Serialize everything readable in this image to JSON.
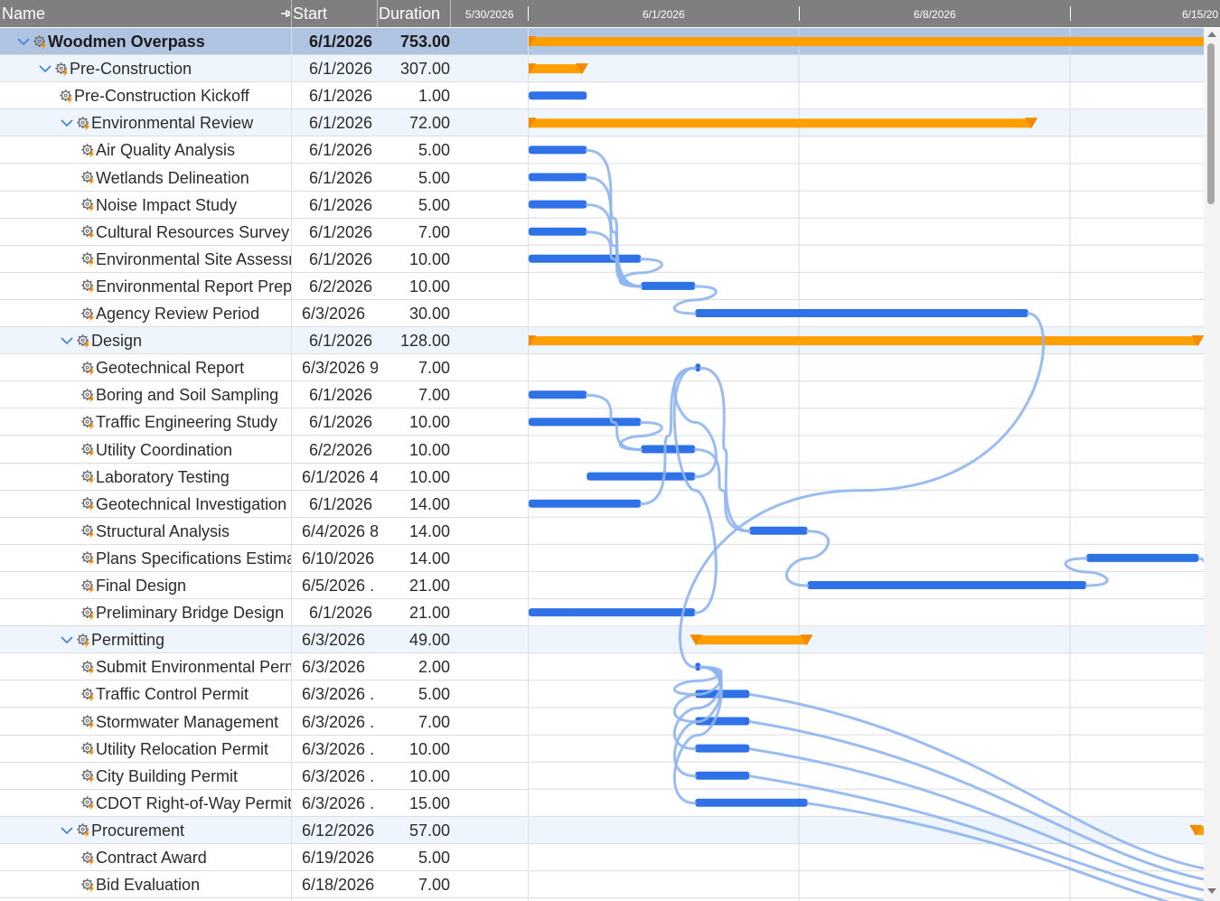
{
  "header": {
    "name_label": "Name",
    "start_label": "Start",
    "duration_label": "Duration",
    "timeline_dates": [
      "5/30/2026",
      "6/1/2026",
      "6/8/2026",
      "6/15/20"
    ]
  },
  "colors": {
    "header_bg": "#7f7f7f",
    "summary_bar": "#ffa000",
    "task_bar": "#2f72e8",
    "link_line": "#8fb5ef",
    "summary_row_bg": "#eef5fc",
    "top_row_bg": "#afc4e0"
  },
  "rows": [
    {
      "name": "Woodmen Overpass",
      "start": "6/1/2026",
      "duration": "753.00",
      "level": 0,
      "type": "summary",
      "bar": {
        "start": 0,
        "end": 25
      }
    },
    {
      "name": "Pre-Construction",
      "start": "6/1/2026",
      "duration": "307.00",
      "level": 1,
      "type": "summary",
      "bar": {
        "start": 0,
        "end": 1.4
      }
    },
    {
      "name": "Pre-Construction Kickoff",
      "start": "6/1/2026",
      "duration": "1.00",
      "level": 2,
      "type": "task",
      "bar": {
        "start": 0,
        "end": 1.5
      }
    },
    {
      "name": "Environmental Review",
      "start": "6/1/2026",
      "duration": "72.00",
      "level": 2,
      "type": "summary",
      "bar": {
        "start": 0,
        "end": 13
      }
    },
    {
      "name": "Air Quality Analysis",
      "start": "6/1/2026",
      "duration": "5.00",
      "level": 3,
      "type": "task",
      "bar": {
        "start": 0,
        "end": 1.5
      }
    },
    {
      "name": "Wetlands Delineation",
      "start": "6/1/2026",
      "duration": "5.00",
      "level": 3,
      "type": "task",
      "bar": {
        "start": 0,
        "end": 1.5
      }
    },
    {
      "name": "Noise Impact Study",
      "start": "6/1/2026",
      "duration": "5.00",
      "level": 3,
      "type": "task",
      "bar": {
        "start": 0,
        "end": 1.5
      }
    },
    {
      "name": "Cultural Resources Survey",
      "start": "6/1/2026",
      "duration": "7.00",
      "level": 3,
      "type": "task",
      "bar": {
        "start": 0,
        "end": 1.5
      }
    },
    {
      "name": "Environmental Site Assessment",
      "start": "6/1/2026",
      "duration": "10.00",
      "level": 3,
      "type": "task",
      "bar": {
        "start": 0,
        "end": 2.9
      }
    },
    {
      "name": "Environmental Report Preparation",
      "start": "6/2/2026",
      "duration": "10.00",
      "level": 3,
      "type": "task",
      "bar": {
        "start": 2.9,
        "end": 4.3
      }
    },
    {
      "name": "Agency Review Period",
      "start": "6/3/2026",
      "duration": "30.00",
      "level": 3,
      "type": "task",
      "bar": {
        "start": 4.3,
        "end": 12.9
      }
    },
    {
      "name": "Design",
      "start": "6/1/2026",
      "duration": "128.00",
      "level": 2,
      "type": "summary",
      "bar": {
        "start": 0,
        "end": 17.3
      }
    },
    {
      "name": "Geotechnical Report",
      "start": "6/3/2026 9",
      "duration": "7.00",
      "level": 3,
      "type": "task",
      "bar": {
        "start": 4.3,
        "end": 4.4
      }
    },
    {
      "name": "Boring and Soil Sampling",
      "start": "6/1/2026",
      "duration": "7.00",
      "level": 3,
      "type": "task",
      "bar": {
        "start": 0,
        "end": 1.5
      }
    },
    {
      "name": "Traffic Engineering Study",
      "start": "6/1/2026",
      "duration": "10.00",
      "level": 3,
      "type": "task",
      "bar": {
        "start": 0,
        "end": 2.9
      }
    },
    {
      "name": "Utility Coordination",
      "start": "6/2/2026",
      "duration": "10.00",
      "level": 3,
      "type": "task",
      "bar": {
        "start": 2.9,
        "end": 4.3
      }
    },
    {
      "name": "Laboratory Testing",
      "start": "6/1/2026 4",
      "duration": "10.00",
      "level": 3,
      "type": "task",
      "bar": {
        "start": 1.5,
        "end": 4.3
      }
    },
    {
      "name": "Geotechnical Investigation",
      "start": "6/1/2026",
      "duration": "14.00",
      "level": 3,
      "type": "task",
      "bar": {
        "start": 0,
        "end": 2.9
      }
    },
    {
      "name": "Structural Analysis",
      "start": "6/4/2026 8",
      "duration": "14.00",
      "level": 3,
      "type": "task",
      "bar": {
        "start": 5.7,
        "end": 7.2
      }
    },
    {
      "name": "Plans Specifications Estimate",
      "start": "6/10/2026",
      "duration": "14.00",
      "level": 3,
      "type": "task",
      "bar": {
        "start": 14.4,
        "end": 17.3
      }
    },
    {
      "name": "Final Design",
      "start": "6/5/2026 .",
      "duration": "21.00",
      "level": 3,
      "type": "task",
      "bar": {
        "start": 7.2,
        "end": 14.4
      }
    },
    {
      "name": "Preliminary Bridge Design",
      "start": "6/1/2026",
      "duration": "21.00",
      "level": 3,
      "type": "task",
      "bar": {
        "start": 0,
        "end": 4.3
      }
    },
    {
      "name": "Permitting",
      "start": "6/3/2026",
      "duration": "49.00",
      "level": 2,
      "type": "summary",
      "bar": {
        "start": 4.3,
        "end": 7.2
      }
    },
    {
      "name": "Submit Environmental Permits",
      "start": "6/3/2026",
      "duration": "2.00",
      "level": 3,
      "type": "task",
      "bar": {
        "start": 4.3,
        "end": 4.4
      }
    },
    {
      "name": "Traffic Control Permit",
      "start": "6/3/2026 .",
      "duration": "5.00",
      "level": 3,
      "type": "task",
      "bar": {
        "start": 4.3,
        "end": 5.7
      }
    },
    {
      "name": "Stormwater Management",
      "start": "6/3/2026 .",
      "duration": "7.00",
      "level": 3,
      "type": "task",
      "bar": {
        "start": 4.3,
        "end": 5.7
      }
    },
    {
      "name": "Utility Relocation Permit",
      "start": "6/3/2026 .",
      "duration": "10.00",
      "level": 3,
      "type": "task",
      "bar": {
        "start": 4.3,
        "end": 5.7
      }
    },
    {
      "name": "City Building Permit",
      "start": "6/3/2026 .",
      "duration": "10.00",
      "level": 3,
      "type": "task",
      "bar": {
        "start": 4.3,
        "end": 5.7
      }
    },
    {
      "name": "CDOT Right-of-Way Permit",
      "start": "6/3/2026 .",
      "duration": "15.00",
      "level": 3,
      "type": "task",
      "bar": {
        "start": 4.3,
        "end": 7.2
      }
    },
    {
      "name": "Procurement",
      "start": "6/12/2026",
      "duration": "57.00",
      "level": 2,
      "type": "summary",
      "bar": {
        "start": 17.2,
        "end": 25
      }
    },
    {
      "name": "Contract Award",
      "start": "6/19/2026",
      "duration": "5.00",
      "level": 3,
      "type": "task",
      "bar": null
    },
    {
      "name": "Bid Evaluation",
      "start": "6/18/2026",
      "duration": "7.00",
      "level": 3,
      "type": "task",
      "bar": null
    }
  ]
}
